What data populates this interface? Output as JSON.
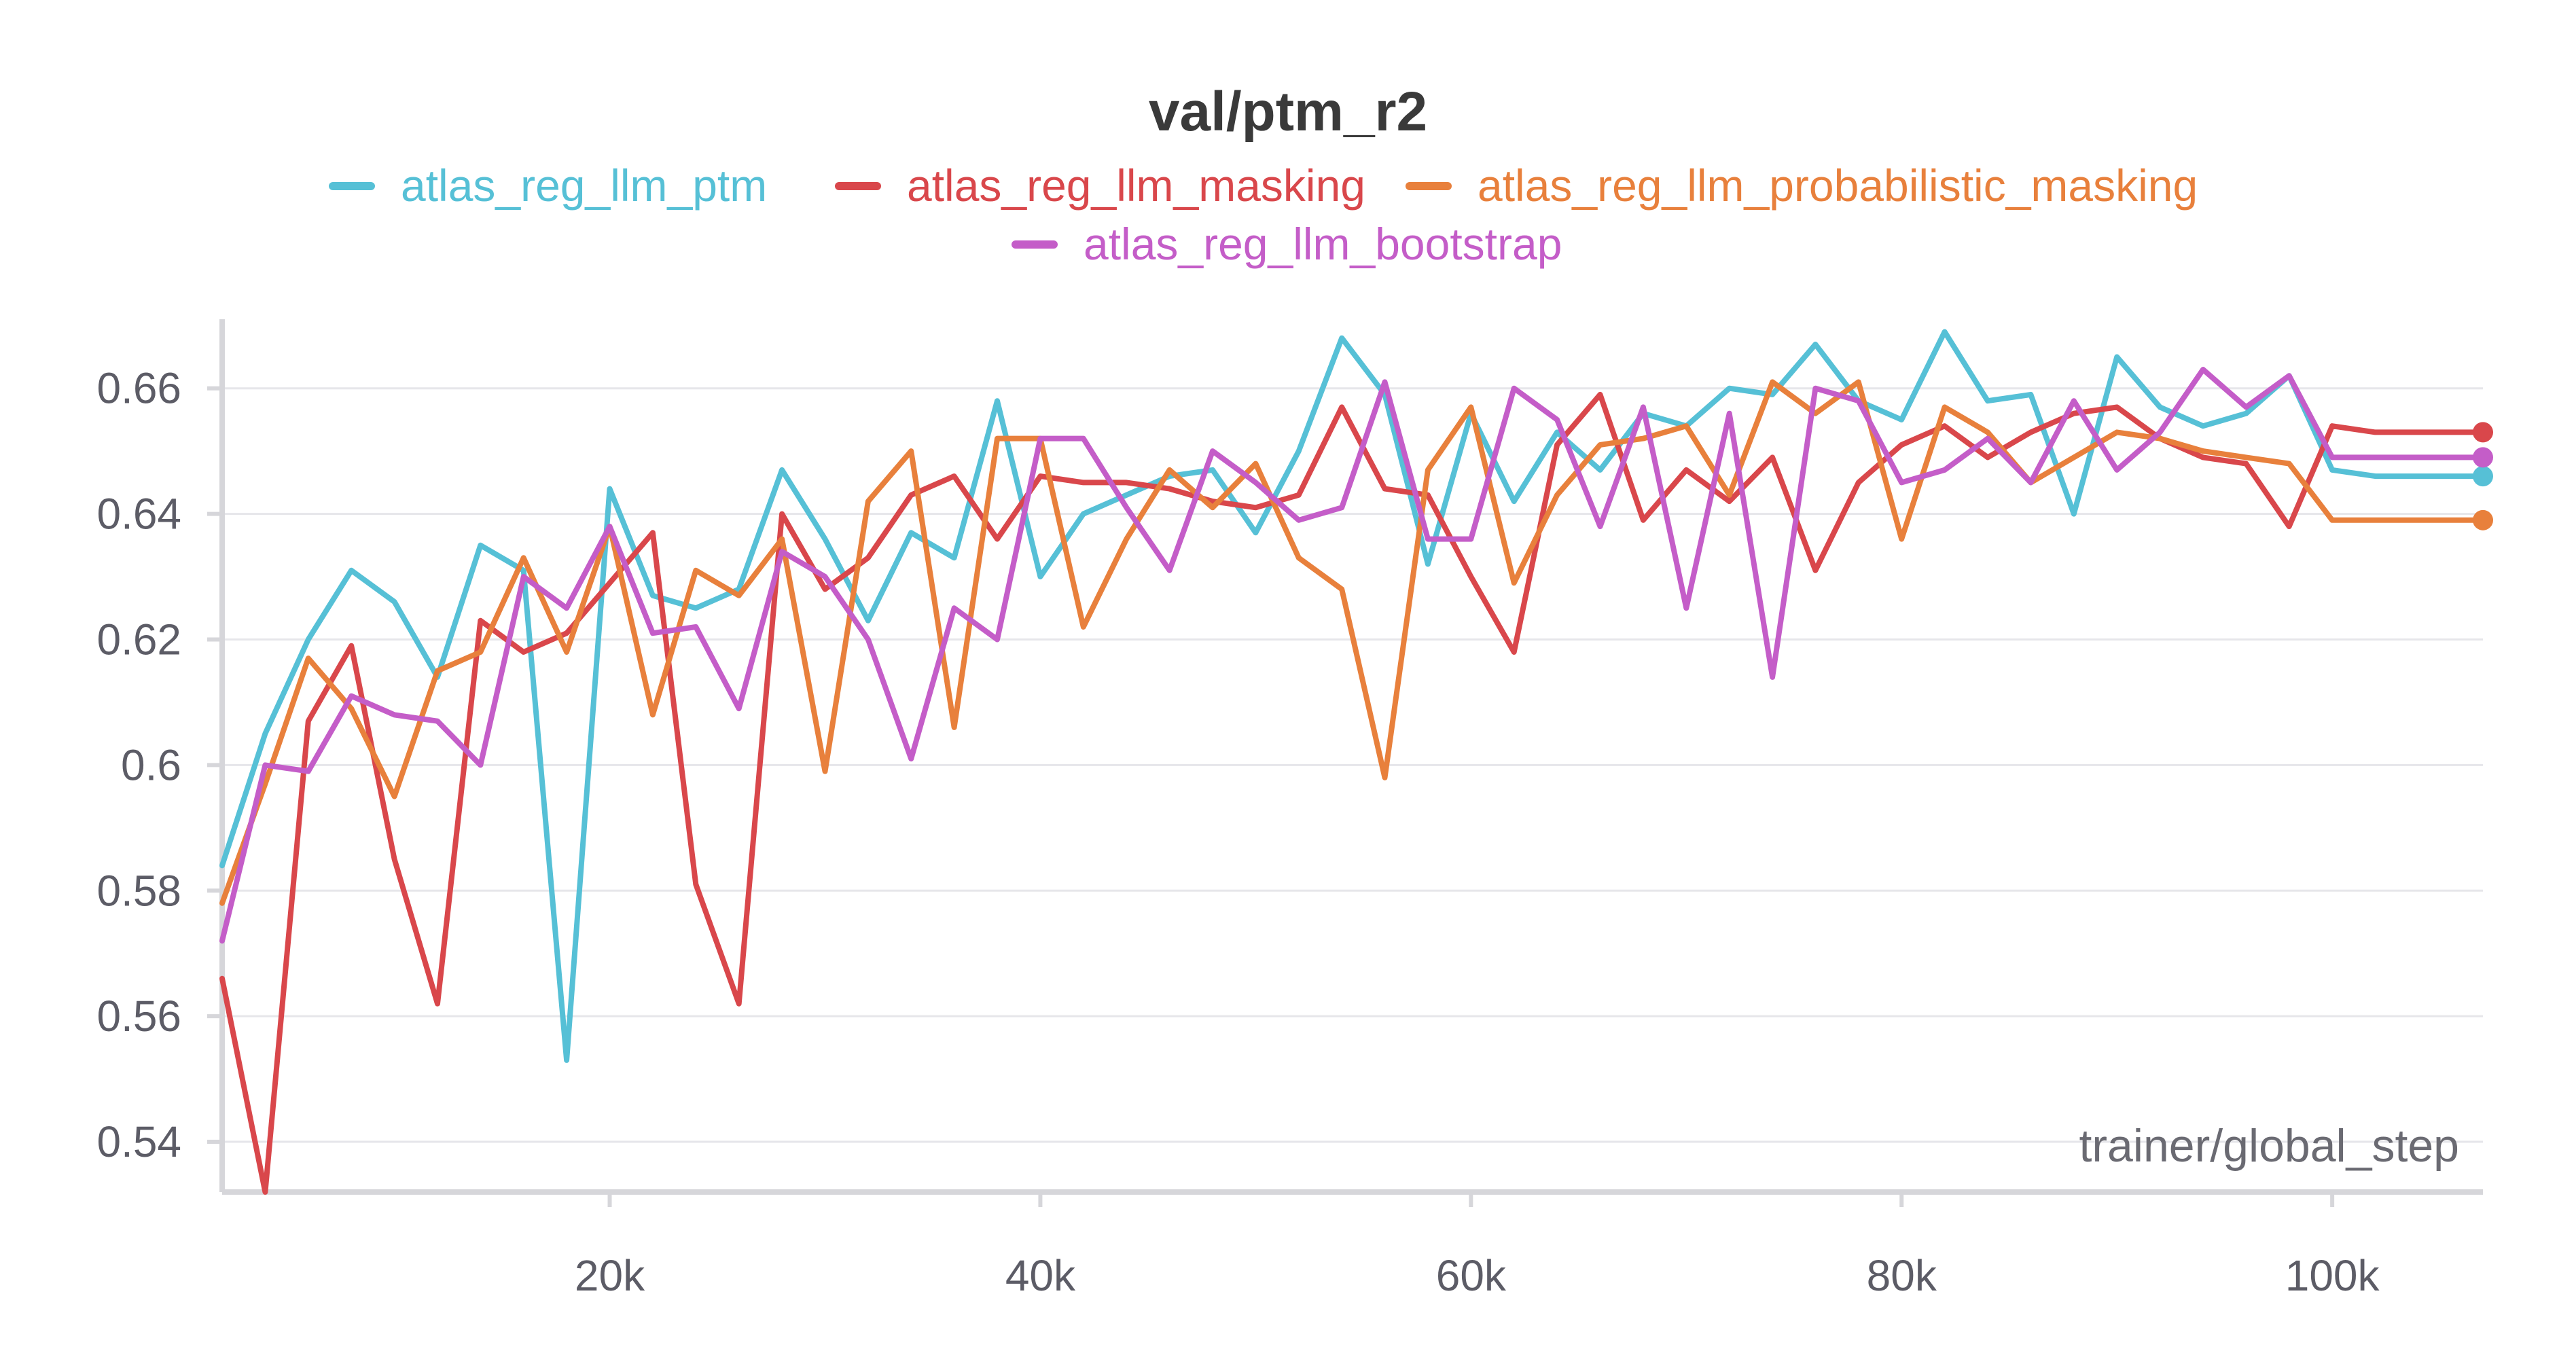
{
  "chart_data": {
    "type": "line",
    "title": "val/ptm_r2",
    "xlabel": "trainer/global_step",
    "ylabel": "",
    "xlim": [
      2000,
      107000
    ],
    "ylim": [
      0.532,
      0.671
    ],
    "x_ticks": [
      20000,
      40000,
      60000,
      80000,
      100000
    ],
    "x_tick_labels": [
      "20k",
      "40k",
      "60k",
      "80k",
      "100k"
    ],
    "y_ticks": [
      0.54,
      0.56,
      0.58,
      0.6,
      0.62,
      0.64,
      0.66
    ],
    "y_tick_labels": [
      "0.54",
      "0.56",
      "0.58",
      "0.6",
      "0.62",
      "0.64",
      "0.66"
    ],
    "grid": true,
    "legend_position": "top-center",
    "x": [
      2000,
      4000,
      6000,
      8000,
      10000,
      12000,
      14000,
      16000,
      18000,
      20000,
      22000,
      24000,
      26000,
      28000,
      30000,
      32000,
      34000,
      36000,
      38000,
      40000,
      42000,
      44000,
      46000,
      48000,
      50000,
      52000,
      54000,
      56000,
      58000,
      60000,
      62000,
      64000,
      66000,
      68000,
      70000,
      72000,
      74000,
      76000,
      78000,
      80000,
      82000,
      84000,
      86000,
      88000,
      90000,
      92000,
      94000,
      96000,
      98000,
      100000,
      102000,
      104000,
      106000,
      107000
    ],
    "series": [
      {
        "name": "atlas_reg_llm_ptm",
        "color": "#56c0d6",
        "values": [
          0.584,
          0.605,
          0.62,
          0.631,
          0.626,
          0.614,
          0.635,
          0.631,
          0.553,
          0.644,
          0.627,
          0.625,
          0.628,
          0.647,
          0.636,
          0.623,
          0.637,
          0.633,
          0.658,
          0.63,
          0.64,
          0.643,
          0.646,
          0.647,
          0.637,
          0.65,
          0.668,
          0.659,
          0.632,
          0.656,
          0.642,
          0.653,
          0.647,
          0.656,
          0.654,
          0.66,
          0.659,
          0.667,
          0.658,
          0.655,
          0.669,
          0.658,
          0.659,
          0.64,
          0.665,
          0.657,
          0.654,
          0.656,
          0.662,
          0.647,
          0.646,
          0.646,
          0.646,
          0.646
        ]
      },
      {
        "name": "atlas_reg_llm_masking",
        "color": "#d9474b",
        "values": [
          0.566,
          0.532,
          0.607,
          0.619,
          0.585,
          0.562,
          0.623,
          0.618,
          0.621,
          0.629,
          0.637,
          0.581,
          0.562,
          0.64,
          0.628,
          0.633,
          0.643,
          0.646,
          0.636,
          0.646,
          0.645,
          0.645,
          0.644,
          0.642,
          0.641,
          0.643,
          0.657,
          0.644,
          0.643,
          0.63,
          0.618,
          0.651,
          0.659,
          0.639,
          0.647,
          0.642,
          0.649,
          0.631,
          0.645,
          0.651,
          0.654,
          0.649,
          0.653,
          0.656,
          0.657,
          0.652,
          0.649,
          0.648,
          0.638,
          0.654,
          0.653,
          0.653,
          0.653,
          0.653
        ]
      },
      {
        "name": "atlas_reg_llm_probabilistic_masking",
        "color": "#e8803c",
        "values": [
          0.578,
          0.597,
          0.617,
          0.609,
          0.595,
          0.615,
          0.618,
          0.633,
          0.618,
          0.638,
          0.608,
          0.631,
          0.627,
          0.636,
          0.599,
          0.642,
          0.65,
          0.606,
          0.652,
          0.652,
          0.622,
          0.636,
          0.647,
          0.641,
          0.648,
          0.633,
          0.628,
          0.598,
          0.647,
          0.657,
          0.629,
          0.643,
          0.651,
          0.652,
          0.654,
          0.643,
          0.661,
          0.656,
          0.661,
          0.636,
          0.657,
          0.653,
          0.645,
          0.649,
          0.653,
          0.652,
          0.65,
          0.649,
          0.648,
          0.639,
          0.639,
          0.639,
          0.639,
          0.639
        ]
      },
      {
        "name": "atlas_reg_llm_bootstrap",
        "color": "#c45dc8",
        "values": [
          0.572,
          0.6,
          0.599,
          0.611,
          0.608,
          0.607,
          0.6,
          0.63,
          0.625,
          0.638,
          0.621,
          0.622,
          0.609,
          0.634,
          0.63,
          0.62,
          0.601,
          0.625,
          0.62,
          0.652,
          0.652,
          0.641,
          0.631,
          0.65,
          0.645,
          0.639,
          0.641,
          0.661,
          0.636,
          0.636,
          0.66,
          0.655,
          0.638,
          0.657,
          0.625,
          0.656,
          0.614,
          0.66,
          0.658,
          0.645,
          0.647,
          0.652,
          0.645,
          0.658,
          0.647,
          0.653,
          0.663,
          0.657,
          0.662,
          0.649,
          0.649,
          0.649,
          0.649,
          0.649
        ]
      }
    ]
  }
}
